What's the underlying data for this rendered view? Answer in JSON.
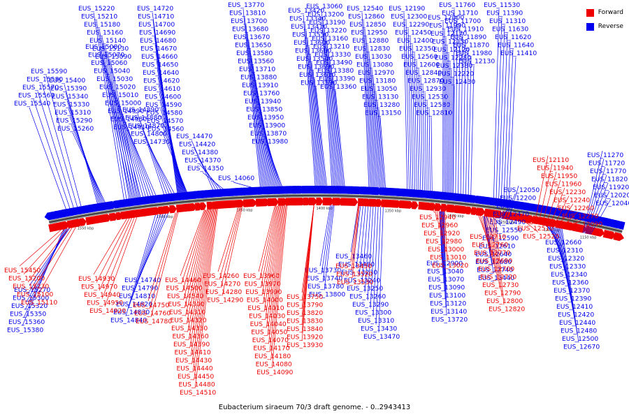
{
  "caption": "Eubacterium siraeum 70/3 draft genome. - 0..2943413",
  "legend": [
    {
      "label": "Forward",
      "color": "#ee0000"
    },
    {
      "label": "Reverse",
      "color": "#0000ee"
    }
  ],
  "scale_ticks": [
    "1550 kbp",
    "1500 kbp",
    "1450 kbp",
    "1400 kbp",
    "1350 kbp",
    "1300 kbp",
    "1250 kbp",
    "1200 kbp",
    "1150 kbp"
  ],
  "reverse_genes": [
    "EUS_15590",
    "EUS_15580",
    "EUS_15570",
    "EUS_15560",
    "EUS_15540",
    "EUS_15400",
    "EUS_15390",
    "EUS_15340",
    "EUS_15330",
    "EUS_15310",
    "EUS_15290",
    "EUS_15260",
    "EUS_15220",
    "EUS_15210",
    "EUS_15180",
    "EUS_15160",
    "EUS_15140",
    "EUS_15130",
    "EUS_15090",
    "EUS_15080",
    "EUS_15070",
    "EUS_15060",
    "EUS_15040",
    "EUS_15030",
    "EUS_15020",
    "EUS_15010",
    "EUS_15000",
    "EUS_14990",
    "EUS_14980",
    "EUS_14910",
    "EUS_14890",
    "EUS_14880",
    "EUS_14870",
    "EUS_14800",
    "EUS_14730",
    "EUS_14720",
    "EUS_14710",
    "EUS_14700",
    "EUS_14690",
    "EUS_14680",
    "EUS_14670",
    "EUS_14660",
    "EUS_14650",
    "EUS_14640",
    "EUS_14620",
    "EUS_14610",
    "EUS_14600",
    "EUS_14590",
    "EUS_14580",
    "EUS_14570",
    "EUS_14560",
    "EUS_14470",
    "EUS_14420",
    "EUS_14380",
    "EUS_14370",
    "EUS_14350",
    "EUS_15270",
    "EUS_15300",
    "EUS_15320",
    "EUS_15350",
    "EUS_15360",
    "EUS_15380",
    "EUS_14740",
    "EUS_14790",
    "EUS_14810",
    "EUS_14820",
    "EUS_14830",
    "EUS_14840",
    "EUS_13770",
    "EUS_13810",
    "EUS_13700",
    "EUS_13680",
    "EUS_13670",
    "EUS_13650",
    "EUS_13580",
    "EUS_13560",
    "EUS_13710",
    "EUS_13880",
    "EUS_13910",
    "EUS_13760",
    "EUS_13940",
    "EUS_13850",
    "EUS_13950",
    "EUS_13900",
    "EUS_13870",
    "EUS_13980",
    "EUS_14060",
    "EUS_13420",
    "EUS_13340",
    "EUS_13410",
    "EUS_13550",
    "EUS_13600",
    "EUS_13660",
    "EUS_13540",
    "EUS_13690",
    "EUS_13610",
    "EUS_13590",
    "EUS_13060",
    "EUS_13200",
    "EUS_13190",
    "EUS_13220",
    "EUS_13160",
    "EUS_13210",
    "EUS_13330",
    "EUS_13490",
    "EUS_13380",
    "EUS_13390",
    "EUS_13360",
    "EUS_12540",
    "EUS_12860",
    "EUS_12850",
    "EUS_12950",
    "EUS_12880",
    "EUS_12830",
    "EUS_13030",
    "EUS_13080",
    "EUS_12970",
    "EUS_13180",
    "EUS_13050",
    "EUS_13130",
    "EUS_13280",
    "EUS_13150",
    "EUS_12190",
    "EUS_12300",
    "EUS_12290",
    "EUS_12450",
    "EUS_12400",
    "EUS_12350",
    "EUS_12560",
    "EUS_12600",
    "EUS_12840",
    "EUS_12870",
    "EUS_12930",
    "EUS_12530",
    "EUS_12580",
    "EUS_12810",
    "EUS_12000",
    "EUS_11990",
    "EUS_12170",
    "EUS_12150",
    "EUS_12120",
    "EUS_12280",
    "EUS_12380",
    "EUS_12220",
    "EUS_12430",
    "EUS_11760",
    "EUS_11710",
    "EUS_11700",
    "EUS_11910",
    "EUS_11890",
    "EUS_11870",
    "EUS_11980",
    "EUS_12130",
    "EUS_11530",
    "EUS_11390",
    "EUS_11310",
    "EUS_11630",
    "EUS_11620",
    "EUS_11640",
    "EUS_11410",
    "EUS_11270",
    "EUS_11720",
    "EUS_11770",
    "EUS_11820",
    "EUS_11920",
    "EUS_12020",
    "EUS_12040",
    "EUS_12050",
    "EUS_12200",
    "EUS_12210",
    "EUS_12470",
    "EUS_12490",
    "EUS_12550",
    "EUS_12590",
    "EUS_12610",
    "EUS_12640",
    "EUS_12660",
    "EUS_12310",
    "EUS_12320",
    "EUS_12330",
    "EUS_12340",
    "EUS_12360",
    "EUS_12370",
    "EUS_12390",
    "EUS_12410",
    "EUS_12420",
    "EUS_12440",
    "EUS_12480",
    "EUS_12500",
    "EUS_12670",
    "EUS_12680",
    "EUS_12740",
    "EUS_13440",
    "EUS_13460",
    "EUS_13480",
    "EUS_13230",
    "EUS_13240",
    "EUS_13250",
    "EUS_13260",
    "EUS_13290",
    "EUS_13300",
    "EUS_13310",
    "EUS_13430",
    "EUS_13470",
    "EUS_12900",
    "EUS_13040",
    "EUS_13070",
    "EUS_13090",
    "EUS_13100",
    "EUS_13120",
    "EUS_13140",
    "EUS_13720",
    "EUS_13730",
    "EUS_13740",
    "EUS_13780",
    "EUS_13800"
  ],
  "forward_genes": [
    "EUS_15450",
    "EUS_15200",
    "EUS_15230",
    "EUS_15100",
    "EUS_15110",
    "EUS_14930",
    "EUS_14970",
    "EUS_14940",
    "EUS_14950",
    "EUS_14920",
    "EUS_14750",
    "EUS_14760",
    "EUS_14780",
    "EUS_14460",
    "EUS_14500",
    "EUS_14540",
    "EUS_14300",
    "EUS_14310",
    "EUS_14320",
    "EUS_14330",
    "EUS_14360",
    "EUS_14390",
    "EUS_14410",
    "EUS_14430",
    "EUS_14440",
    "EUS_14450",
    "EUS_14480",
    "EUS_14510",
    "EUS_14260",
    "EUS_14270",
    "EUS_14280",
    "EUS_14290",
    "EUS_13960",
    "EUS_13970",
    "EUS_13990",
    "EUS_14000",
    "EUS_14010",
    "EUS_14030",
    "EUS_14040",
    "EUS_14050",
    "EUS_14070",
    "EUS_14170",
    "EUS_14180",
    "EUS_14080",
    "EUS_14090",
    "EUS_13750",
    "EUS_13790",
    "EUS_13820",
    "EUS_13830",
    "EUS_13840",
    "EUS_13920",
    "EUS_13930",
    "EUS_13450",
    "EUS_13520",
    "EUS_13530",
    "EUS_12940",
    "EUS_12960",
    "EUS_12920",
    "EUS_12980",
    "EUS_13000",
    "EUS_13010",
    "EUS_13020",
    "EUS_12710",
    "EUS_12760",
    "EUS_12770",
    "EUS_12690",
    "EUS_12700",
    "EUS_12720",
    "EUS_12730",
    "EUS_12790",
    "EUS_12800",
    "EUS_12820",
    "EUS_12110",
    "EUS_11940",
    "EUS_11950",
    "EUS_11960",
    "EUS_12230",
    "EUS_12240",
    "EUS_12260",
    "EUS_12270",
    "EUS_12090",
    "EUS_12510",
    "EUS_12520"
  ]
}
